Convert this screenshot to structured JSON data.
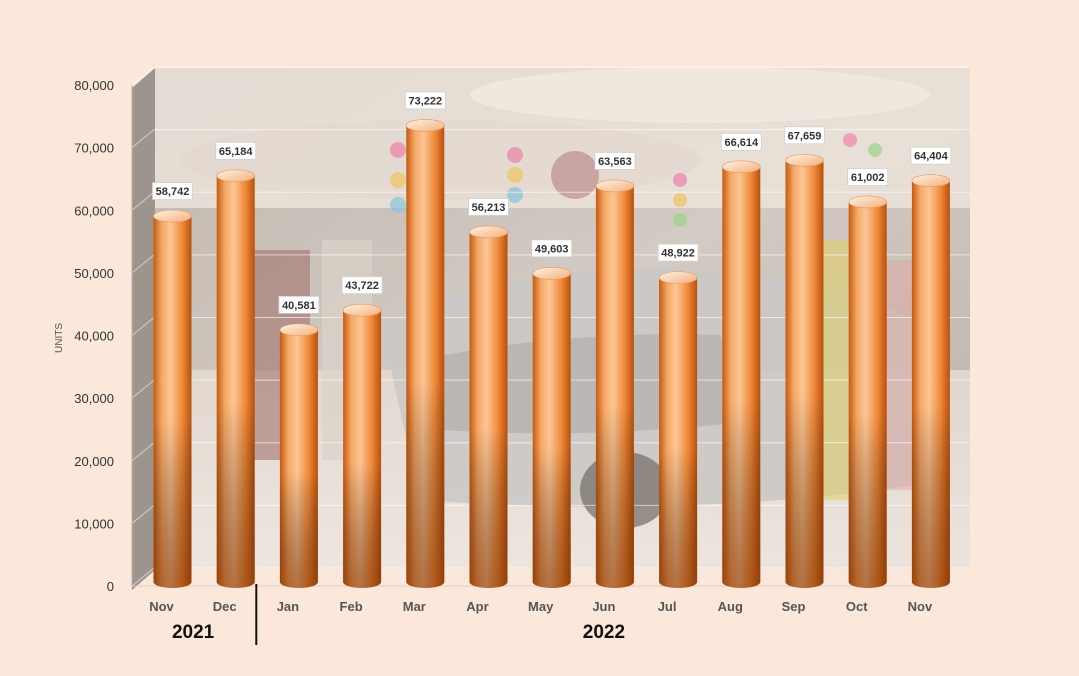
{
  "chart_data": {
    "type": "bar",
    "ylabel": "UNITS",
    "ylim": [
      0,
      80000
    ],
    "yticks": [
      0,
      10000,
      20000,
      30000,
      40000,
      50000,
      60000,
      70000,
      80000
    ],
    "ytick_labels": [
      "0",
      "10,000",
      "20,000",
      "30,000",
      "40,000",
      "50,000",
      "60,000",
      "70,000",
      "80,000"
    ],
    "categories": [
      "Nov",
      "Dec",
      "Jan",
      "Feb",
      "Mar",
      "Apr",
      "May",
      "Jun",
      "Jul",
      "Aug",
      "Sep",
      "Oct",
      "Nov"
    ],
    "values": [
      58742,
      65184,
      40581,
      43722,
      73222,
      56213,
      49603,
      63563,
      48922,
      66614,
      67659,
      61002,
      64404
    ],
    "data_labels": [
      "58,742",
      "65,184",
      "40,581",
      "43,722",
      "73,222",
      "56,213",
      "49,603",
      "63,563",
      "48,922",
      "66,614",
      "67,659",
      "61,002",
      "64,404"
    ],
    "year_groups": [
      {
        "label": "2021",
        "categories": [
          "Nov",
          "Dec"
        ]
      },
      {
        "label": "2022",
        "categories": [
          "Jan",
          "Feb",
          "Mar",
          "Apr",
          "May",
          "Jun",
          "Jul",
          "Aug",
          "Sep",
          "Oct",
          "Nov"
        ]
      }
    ],
    "style": "3d-cylinder",
    "grid": true,
    "background": "photo of a car showroom with displayed sedan and visitors",
    "colors": {
      "page_background": "#fce8da",
      "bar_light": "#fbc696",
      "bar_mid": "#f08a3a",
      "bar_dark": "#c55a10",
      "axis_text": "#333333",
      "year_text": "#111111"
    }
  }
}
